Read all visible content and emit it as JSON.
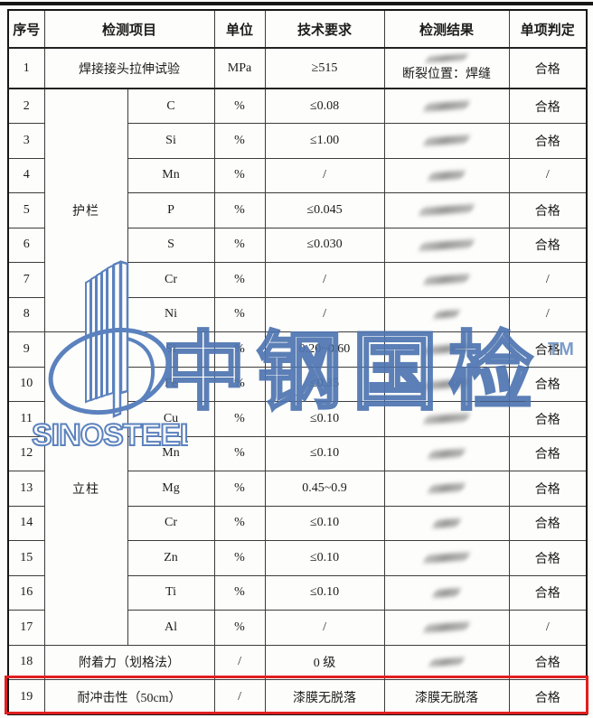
{
  "watermark": {
    "text": "中钢国检",
    "tm": "TM",
    "color": "#4d74b0"
  },
  "logo": {
    "text": "SINOSTEEL",
    "color": "#5b82be"
  },
  "highlight": {
    "color": "#e02020",
    "row": "19"
  },
  "table": {
    "headers": [
      "序号",
      "检测项目",
      "单位",
      "技术要求",
      "检测结果",
      "单项判定"
    ],
    "group_labels": [
      "护栏",
      "立柱"
    ],
    "rows": [
      {
        "no": "1",
        "item": "焊接接头拉伸试验",
        "item_colspan": true,
        "unit": "MPa",
        "req": "≥515",
        "result_blur": true,
        "result_text": "断裂位置：焊缝",
        "verdict": "合格"
      },
      {
        "no": "2",
        "group": "护栏",
        "group_rowspan": 7,
        "item": "C",
        "unit": "%",
        "req": "≤0.08",
        "result_blur": true,
        "verdict": "合格"
      },
      {
        "no": "3",
        "item": "Si",
        "unit": "%",
        "req": "≤1.00",
        "result_blur": true,
        "verdict": "合格"
      },
      {
        "no": "4",
        "item": "Mn",
        "unit": "%",
        "req": "/",
        "result_blur": true,
        "verdict": "/"
      },
      {
        "no": "5",
        "item": "P",
        "unit": "%",
        "req": "≤0.045",
        "result_blur": true,
        "verdict": "合格"
      },
      {
        "no": "6",
        "item": "S",
        "unit": "%",
        "req": "≤0.030",
        "result_blur": true,
        "verdict": "合格"
      },
      {
        "no": "7",
        "item": "Cr",
        "unit": "%",
        "req": "/",
        "result_blur": true,
        "verdict": "/"
      },
      {
        "no": "8",
        "item": "Ni",
        "unit": "%",
        "req": "/",
        "result_blur": true,
        "verdict": "/"
      },
      {
        "no": "9",
        "group": "立柱",
        "group_rowspan": 9,
        "item": "Si",
        "unit": "%",
        "req": "0.20~0.60",
        "result_blur": true,
        "verdict": "合格"
      },
      {
        "no": "10",
        "item": "Fe",
        "unit": "%",
        "req": "≤0.35",
        "result_blur": true,
        "verdict": "合格"
      },
      {
        "no": "11",
        "item": "Cu",
        "unit": "%",
        "req": "≤0.10",
        "result_blur": true,
        "verdict": "合格"
      },
      {
        "no": "12",
        "item": "Mn",
        "unit": "%",
        "req": "≤0.10",
        "result_blur": true,
        "verdict": "合格"
      },
      {
        "no": "13",
        "item": "Mg",
        "unit": "%",
        "req": "0.45~0.9",
        "result_blur": true,
        "verdict": "合格"
      },
      {
        "no": "14",
        "item": "Cr",
        "unit": "%",
        "req": "≤0.10",
        "result_blur": true,
        "verdict": "合格"
      },
      {
        "no": "15",
        "item": "Zn",
        "unit": "%",
        "req": "≤0.10",
        "result_blur": true,
        "verdict": "合格"
      },
      {
        "no": "16",
        "item": "Ti",
        "unit": "%",
        "req": "≤0.10",
        "result_blur": true,
        "verdict": "合格"
      },
      {
        "no": "17",
        "item": "Al",
        "unit": "%",
        "req": "/",
        "result_blur": true,
        "verdict": "/"
      },
      {
        "no": "18",
        "item": "附着力（划格法）",
        "item_colspan": true,
        "unit": "/",
        "req": "0 级",
        "result_blur": true,
        "verdict": "合格"
      },
      {
        "no": "19",
        "item": "耐冲击性（50cm）",
        "item_colspan": true,
        "unit": "/",
        "req": "漆膜无脱落",
        "result_text": "漆膜无脱落",
        "verdict": "合格",
        "highlighted": true
      }
    ]
  }
}
